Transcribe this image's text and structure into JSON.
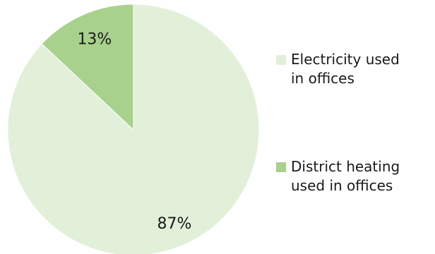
{
  "chart_data": {
    "type": "pie",
    "categories": [
      "Electricity used in offices",
      "District heating used in offices"
    ],
    "values": [
      87,
      13
    ],
    "value_labels": [
      "87%",
      "13%"
    ],
    "colors": [
      "#e2efd9",
      "#a9d18e"
    ],
    "start": "12 o'clock, clockwise",
    "legend_position": "right",
    "legend": [
      {
        "lines": [
          "Electricity used",
          "in offices"
        ],
        "color": "#e2efd9"
      },
      {
        "lines": [
          "District heating",
          "used in offices"
        ],
        "color": "#a9d18e"
      }
    ]
  }
}
